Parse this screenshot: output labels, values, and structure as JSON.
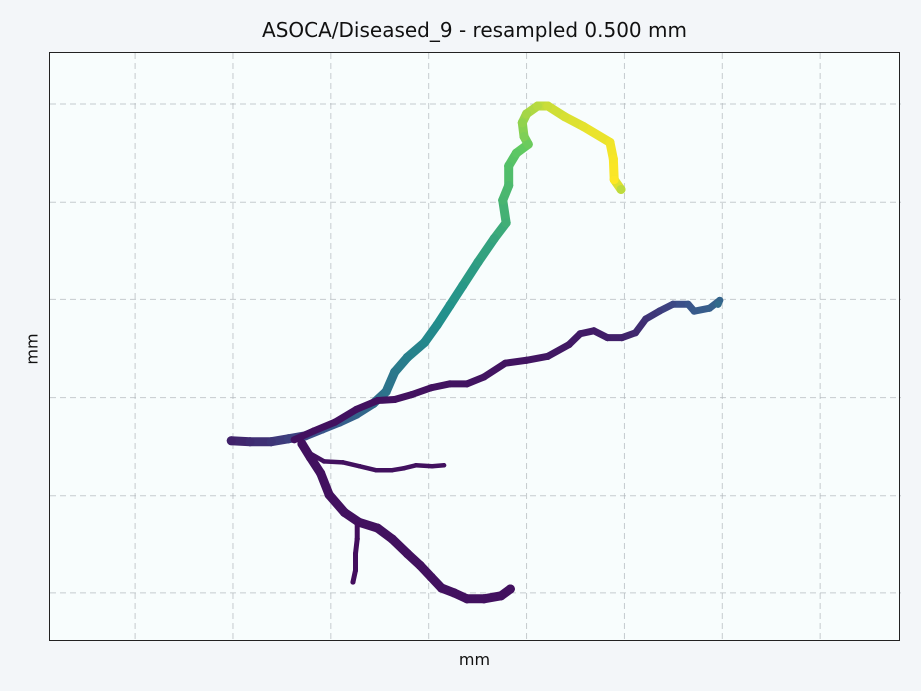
{
  "chart_data": {
    "type": "line",
    "title": "ASOCA/Diseased_9 - resampled 0.500 mm",
    "xlabel": "mm",
    "ylabel": "mm",
    "xlim": [
      0,
      100
    ],
    "ylim": [
      0,
      60
    ],
    "grid": true,
    "tick_labels_visible": false,
    "x_grid": [
      10,
      21.5,
      33,
      44.5,
      56,
      67.5,
      79,
      90.5
    ],
    "y_grid": [
      5.2,
      15.2,
      25.1,
      35.1,
      45.1,
      55.0
    ],
    "colormap": [
      "#440154",
      "#3b528b",
      "#21918c",
      "#5ec962",
      "#fde725"
    ],
    "series": [
      {
        "points": [
          [
            21.3,
            39.5
          ],
          [
            23.5,
            39.6
          ],
          [
            26,
            39.6
          ],
          [
            28,
            39.3
          ],
          [
            30,
            39.0
          ],
          [
            32,
            38.3
          ],
          [
            34,
            37.6
          ],
          [
            36,
            36.8
          ],
          [
            38,
            35.7
          ],
          [
            39.5,
            34.5
          ],
          [
            40.5,
            32.5
          ],
          [
            42,
            31.0
          ],
          [
            44,
            29.5
          ],
          [
            45.5,
            27.7
          ],
          [
            47,
            25.7
          ],
          [
            48.5,
            23.7
          ],
          [
            50.3,
            21.3
          ],
          [
            52.2,
            18.9
          ],
          [
            53.6,
            17.3
          ],
          [
            53.2,
            15.0
          ],
          [
            53.9,
            13.5
          ],
          [
            53.9,
            11.5
          ],
          [
            54.8,
            10.2
          ],
          [
            56.2,
            9.3
          ],
          [
            55.7,
            8.5
          ],
          [
            55.5,
            7.1
          ],
          [
            56,
            6.2
          ],
          [
            57.3,
            5.4
          ],
          [
            58.5,
            5.4
          ],
          [
            60.5,
            6.5
          ],
          [
            62.7,
            7.5
          ],
          [
            65.8,
            9.1
          ],
          [
            66.2,
            10.8
          ],
          [
            66.3,
            12.9
          ],
          [
            67.1,
            13.9
          ]
        ],
        "t": [
          0.1,
          0.13,
          0.16,
          0.19,
          0.22,
          0.26,
          0.29,
          0.32,
          0.35,
          0.38,
          0.4,
          0.43,
          0.46,
          0.48,
          0.51,
          0.53,
          0.56,
          0.59,
          0.63,
          0.66,
          0.68,
          0.71,
          0.74,
          0.77,
          0.8,
          0.83,
          0.86,
          0.89,
          0.92,
          0.94,
          0.96,
          0.98,
          0.99,
          1.0,
          0.9
        ]
      },
      {
        "points": [
          [
            28.7,
            39.4
          ],
          [
            31,
            38.5
          ],
          [
            33.5,
            37.6
          ],
          [
            36,
            36.3
          ],
          [
            38.5,
            35.4
          ],
          [
            40.5,
            35.3
          ],
          [
            42.5,
            34.8
          ],
          [
            44.8,
            34.1
          ],
          [
            47,
            33.7
          ],
          [
            49,
            33.7
          ],
          [
            51,
            33.0
          ],
          [
            53.5,
            31.6
          ],
          [
            56,
            31.3
          ],
          [
            58.5,
            30.9
          ],
          [
            61,
            29.7
          ],
          [
            62.3,
            28.6
          ],
          [
            63.9,
            28.3
          ],
          [
            65.5,
            29.0
          ],
          [
            67.2,
            29.0
          ],
          [
            68.8,
            28.5
          ],
          [
            70,
            27.1
          ],
          [
            71.6,
            26.3
          ],
          [
            73.2,
            25.6
          ],
          [
            75,
            25.6
          ],
          [
            75.7,
            26.3
          ],
          [
            77.5,
            26.0
          ],
          [
            78.7,
            25.2
          ],
          [
            78.5,
            25.6
          ]
        ],
        "t": [
          0.05,
          0.05,
          0.05,
          0.05,
          0.05,
          0.05,
          0.05,
          0.05,
          0.06,
          0.06,
          0.06,
          0.06,
          0.06,
          0.07,
          0.07,
          0.08,
          0.08,
          0.09,
          0.1,
          0.12,
          0.15,
          0.18,
          0.22,
          0.26,
          0.28,
          0.3,
          0.32,
          0.35
        ]
      },
      {
        "points": [
          [
            29.6,
            39.8
          ],
          [
            30.6,
            41.2
          ],
          [
            31.8,
            42.8
          ],
          [
            32.8,
            45.0
          ],
          [
            34.6,
            46.8
          ],
          [
            36.3,
            47.8
          ],
          [
            38.5,
            48.4
          ],
          [
            40.2,
            49.5
          ],
          [
            42,
            51.0
          ],
          [
            43.5,
            52.2
          ],
          [
            44.8,
            53.4
          ],
          [
            46,
            54.5
          ],
          [
            47.5,
            55.0
          ],
          [
            49,
            55.6
          ],
          [
            51,
            55.6
          ],
          [
            53,
            55.3
          ],
          [
            54.1,
            54.6
          ]
        ],
        "t": [
          0.05,
          0.05,
          0.05,
          0.05,
          0.05,
          0.05,
          0.05,
          0.05,
          0.05,
          0.05,
          0.05,
          0.05,
          0.05,
          0.05,
          0.05,
          0.05,
          0.05
        ]
      },
      {
        "points": [
          [
            36.1,
            48.0
          ],
          [
            36.1,
            49.5
          ],
          [
            35.9,
            51.0
          ],
          [
            35.9,
            52.7
          ],
          [
            35.6,
            53.9
          ]
        ],
        "t": [
          0.04,
          0.04,
          0.04,
          0.04,
          0.04
        ]
      },
      {
        "points": [
          [
            30.6,
            40.8
          ],
          [
            32.2,
            41.6
          ],
          [
            34.4,
            41.7
          ],
          [
            36.4,
            42.1
          ],
          [
            38.3,
            42.5
          ],
          [
            40.2,
            42.5
          ],
          [
            41.6,
            42.3
          ],
          [
            43,
            42.0
          ],
          [
            44.9,
            42.1
          ],
          [
            46.3,
            42.0
          ]
        ],
        "t": [
          0.05,
          0.05,
          0.05,
          0.05,
          0.05,
          0.05,
          0.05,
          0.05,
          0.05,
          0.05
        ]
      }
    ]
  }
}
